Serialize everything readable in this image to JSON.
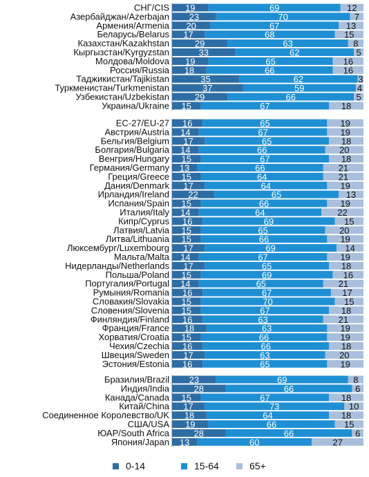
{
  "chart_data": {
    "type": "bar",
    "orientation": "horizontal",
    "stacked": true,
    "normalized": true,
    "legend_position": "bottom",
    "series": [
      {
        "name": "0-14",
        "color": "#2e6da4"
      },
      {
        "name": "15-64",
        "color": "#1f8fd4"
      },
      {
        "name": "65+",
        "color": "#a9bfdc"
      }
    ],
    "groups": [
      {
        "rows": [
          {
            "label": "СНГ/CIS",
            "values": [
              19,
              69,
              12
            ]
          },
          {
            "label": "Азербайджан/Azerbajan",
            "values": [
              23,
              70,
              7
            ]
          },
          {
            "label": "Армения/Armenia",
            "values": [
              20,
              67,
              13
            ]
          },
          {
            "label": "Беларусь/Belarus",
            "values": [
              17,
              68,
              15
            ]
          },
          {
            "label": "Казахстан/Kazakhstan",
            "values": [
              29,
              63,
              8
            ]
          },
          {
            "label": "Кыргызстан/Kyrgyzstan",
            "values": [
              33,
              62,
              5
            ]
          },
          {
            "label": "Молдова/Moldova",
            "values": [
              19,
              65,
              16
            ]
          },
          {
            "label": "Россия/Russia",
            "values": [
              18,
              66,
              16
            ]
          },
          {
            "label": "Таджикистан/Tajikistan",
            "values": [
              35,
              62,
              3
            ]
          },
          {
            "label": "Туркменистан/Turkmenistan",
            "values": [
              37,
              59,
              4
            ]
          },
          {
            "label": "Узбекистан/Uzbekistan",
            "values": [
              29,
              66,
              5
            ]
          },
          {
            "label": "Украина/Ukraine",
            "values": [
              15,
              67,
              18
            ]
          }
        ]
      },
      {
        "rows": [
          {
            "label": "ЕС-27/EU-27",
            "values": [
              16,
              65,
              19
            ]
          },
          {
            "label": "Австрия/Austria",
            "values": [
              14,
              67,
              19
            ]
          },
          {
            "label": "Бельгия/Belgium",
            "values": [
              17,
              65,
              18
            ]
          },
          {
            "label": "Болгария/Bulgaria",
            "values": [
              14,
              66,
              20
            ]
          },
          {
            "label": "Венгрия/Hungary",
            "values": [
              15,
              67,
              18
            ]
          },
          {
            "label": "Германия/Germany",
            "values": [
              13,
              66,
              21
            ]
          },
          {
            "label": "Греция/Greece",
            "values": [
              15,
              64,
              21
            ]
          },
          {
            "label": "Дания/Denmark",
            "values": [
              17,
              64,
              19
            ]
          },
          {
            "label": "Ирландия/Ireland",
            "values": [
              22,
              65,
              13
            ]
          },
          {
            "label": "Испания/Spain",
            "values": [
              15,
              66,
              19
            ]
          },
          {
            "label": "Италия/Italy",
            "values": [
              14,
              64,
              22
            ]
          },
          {
            "label": "Кипр/Cyprus",
            "values": [
              16,
              69,
              15
            ]
          },
          {
            "label": "Латвия/Latvia",
            "values": [
              15,
              65,
              20
            ]
          },
          {
            "label": "Литва/Lithuania",
            "values": [
              15,
              66,
              19
            ]
          },
          {
            "label": "Люксембург/Luxembourg",
            "values": [
              17,
              69,
              14
            ]
          },
          {
            "label": "Мальта/Malta",
            "values": [
              14,
              67,
              19
            ]
          },
          {
            "label": "Нидерланды/Netherlands",
            "values": [
              17,
              65,
              18
            ]
          },
          {
            "label": "Польша/Poland",
            "values": [
              15,
              69,
              16
            ]
          },
          {
            "label": "Португалия/Portugal",
            "values": [
              14,
              65,
              21
            ]
          },
          {
            "label": "Румыния/Romania",
            "values": [
              16,
              67,
              17
            ]
          },
          {
            "label": "Словакия/Slovakia",
            "values": [
              15,
              70,
              15
            ]
          },
          {
            "label": "Словения/Slovenia",
            "values": [
              15,
              67,
              18
            ]
          },
          {
            "label": "Финляндия/Finland",
            "values": [
              16,
              63,
              21
            ]
          },
          {
            "label": "Франция/France",
            "values": [
              18,
              63,
              19
            ]
          },
          {
            "label": "Хорватия/Croatia",
            "values": [
              15,
              66,
              19
            ]
          },
          {
            "label": "Чехия/Czechia",
            "values": [
              16,
              66,
              18
            ]
          },
          {
            "label": "Швеция/Sweden",
            "values": [
              17,
              63,
              20
            ]
          },
          {
            "label": "Эстония/Estonia",
            "values": [
              16,
              65,
              19
            ]
          }
        ]
      },
      {
        "rows": [
          {
            "label": "Бразилия/Brazil",
            "values": [
              23,
              69,
              8
            ]
          },
          {
            "label": "Индия/India",
            "values": [
              28,
              66,
              6
            ]
          },
          {
            "label": "Канада/Canada",
            "values": [
              15,
              67,
              18
            ]
          },
          {
            "label": "Китай/China",
            "values": [
              17,
              73,
              10
            ]
          },
          {
            "label": "Соединенное Королевство/UK",
            "values": [
              18,
              64,
              18
            ]
          },
          {
            "label": "США/USA",
            "values": [
              19,
              66,
              15
            ]
          },
          {
            "label": "ЮАР/South Africa",
            "values": [
              28,
              66,
              6
            ]
          },
          {
            "label": "Япония/Japan",
            "values": [
              13,
              60,
              27
            ]
          }
        ]
      }
    ]
  }
}
